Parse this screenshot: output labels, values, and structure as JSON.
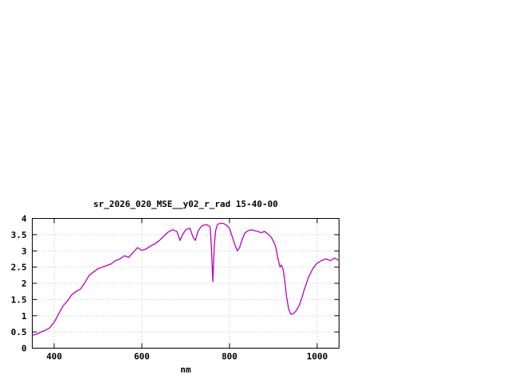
{
  "window": {
    "background": "#ffffff"
  },
  "chart_data": {
    "type": "line",
    "title": "sr_2026_020_MSE__y02_r_rad 15-40-00",
    "xlabel": "nm",
    "ylabel": "",
    "xlim": [
      350,
      1050
    ],
    "ylim": [
      0,
      4
    ],
    "xticks": [
      400,
      600,
      800,
      1000
    ],
    "yticks": [
      0,
      0.5,
      1,
      1.5,
      2,
      2.5,
      3,
      3.5,
      4
    ],
    "grid": true,
    "legend": "none",
    "line_color": "#bb00bb",
    "series": [
      {
        "name": "sr_2026_020_MSE__y02_r_rad",
        "x": [
          350,
          360,
          370,
          380,
          390,
          400,
          410,
          420,
          430,
          440,
          450,
          460,
          470,
          480,
          490,
          500,
          510,
          520,
          530,
          540,
          550,
          560,
          570,
          580,
          590,
          600,
          610,
          620,
          630,
          640,
          650,
          660,
          670,
          680,
          687,
          693,
          700,
          710,
          716,
          722,
          728,
          735,
          742,
          750,
          756,
          759,
          762,
          765,
          768,
          772,
          778,
          785,
          792,
          800,
          806,
          812,
          818,
          823,
          828,
          835,
          842,
          850,
          858,
          865,
          872,
          880,
          888,
          895,
          900,
          905,
          910,
          915,
          918,
          922,
          926,
          930,
          935,
          940,
          945,
          950,
          955,
          960,
          965,
          970,
          975,
          980,
          985,
          990,
          995,
          1000,
          1010,
          1020,
          1030,
          1040,
          1050
        ],
        "y": [
          0.4,
          0.43,
          0.5,
          0.55,
          0.63,
          0.8,
          1.05,
          1.3,
          1.45,
          1.65,
          1.75,
          1.82,
          2.02,
          2.25,
          2.35,
          2.45,
          2.5,
          2.55,
          2.6,
          2.7,
          2.75,
          2.85,
          2.8,
          2.95,
          3.1,
          3.02,
          3.06,
          3.15,
          3.22,
          3.32,
          3.45,
          3.58,
          3.65,
          3.6,
          3.32,
          3.5,
          3.65,
          3.7,
          3.45,
          3.32,
          3.6,
          3.75,
          3.8,
          3.8,
          3.74,
          3.0,
          2.05,
          3.1,
          3.6,
          3.8,
          3.85,
          3.85,
          3.8,
          3.7,
          3.45,
          3.2,
          3.0,
          3.1,
          3.32,
          3.55,
          3.62,
          3.65,
          3.62,
          3.6,
          3.56,
          3.6,
          3.52,
          3.42,
          3.3,
          3.15,
          2.8,
          2.5,
          2.56,
          2.45,
          2.1,
          1.6,
          1.2,
          1.05,
          1.06,
          1.12,
          1.22,
          1.35,
          1.55,
          1.78,
          1.98,
          2.18,
          2.32,
          2.45,
          2.55,
          2.62,
          2.7,
          2.75,
          2.7,
          2.78,
          2.7
        ]
      }
    ]
  }
}
